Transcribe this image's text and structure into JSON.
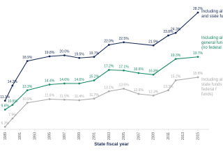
{
  "chart_data": {
    "type": "line",
    "x_label": "State fiscal year",
    "xlim": [
      1988.6,
      2016.5
    ],
    "xticks": [
      1989,
      1991,
      1993,
      1995,
      1997,
      1999,
      2001,
      2003,
      2005,
      2007,
      2009,
      2011,
      2013,
      2015
    ],
    "ylim": [
      5,
      29
    ],
    "series": [
      {
        "name": "Including al and state fu",
        "color": "#172a57",
        "x": [
          1989,
          1990,
          1992,
          1995,
          1997,
          1999,
          2001,
          2003,
          2005,
          2009,
          2011,
          2012,
          2015
        ],
        "values": [
          11.3,
          14.2,
          18.9,
          19.8,
          20.0,
          19.5,
          19.7,
          22.0,
          22.5,
          21.9,
          23.8,
          24.3,
          28.2
        ],
        "value_labels": [
          "11.3%",
          "14.2%",
          "18.9%",
          "19.8%",
          "20.0%",
          "19.5%",
          "19.7%",
          "22.0%",
          "22.5%",
          "21.9%",
          "23.8%",
          "24.3%",
          "28.2%"
        ]
      },
      {
        "name": "Including al general fun (no federal",
        "color": "#1b8a68",
        "x": [
          1989,
          1990,
          1992,
          1995,
          1997,
          1999,
          2001,
          2003,
          2005,
          2007,
          2009,
          2012,
          2015
        ],
        "values": [
          9.6,
          10.5,
          13.3,
          14.4,
          14.6,
          14.6,
          15.2,
          17.2,
          17.1,
          16.6,
          16.3,
          19.3,
          19.7
        ],
        "value_labels": [
          "9.6%",
          "10.5%",
          "13.3%",
          "14.4%",
          "14.6%",
          "14.6%",
          "15.2%",
          "17.2%",
          "17.1%",
          "16.6%",
          "16.3%",
          "19.3%",
          "19.7%"
        ]
      },
      {
        "name": "Including al state funds (no federal f funds)",
        "color": "#ababab",
        "x": [
          1989,
          1990,
          1992,
          1995,
          1997,
          1999,
          2001,
          2003,
          2005,
          2007,
          2009,
          2011,
          2012,
          2015
        ],
        "values": [
          6.3,
          7.9,
          10.9,
          11.6,
          11.5,
          11.4,
          11.7,
          13.1,
          13.6,
          12.6,
          12.3,
          13.3,
          15.2,
          15.8
        ],
        "value_labels": [
          "6.3%",
          "7.9%",
          "10.9%",
          "11.6%",
          "11.5%",
          "11.4%",
          "11.7%",
          "13.1%",
          "13.6%",
          "12.6%",
          "12.3%",
          "13.3%",
          "15.2%",
          "15.8%"
        ]
      }
    ]
  }
}
